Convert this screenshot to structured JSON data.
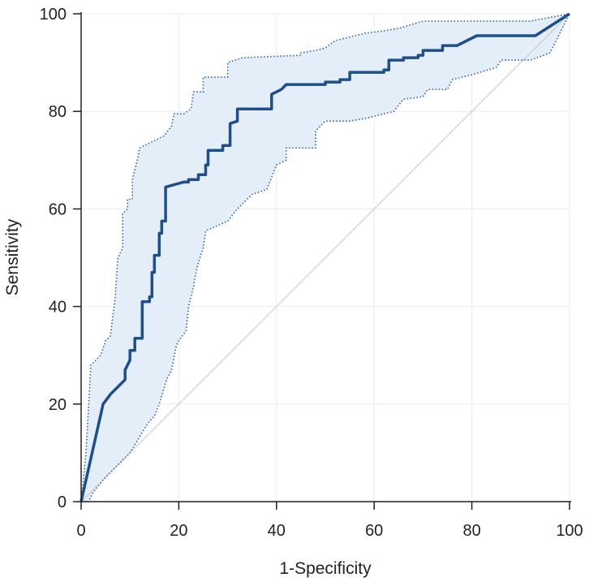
{
  "chart_data": {
    "type": "line",
    "title": "",
    "xlabel": "1-Specificity",
    "ylabel": "Sensitivity",
    "xlim": [
      0,
      100
    ],
    "ylim": [
      0,
      100
    ],
    "xticks": [
      "0",
      "20",
      "40",
      "60",
      "80",
      "100"
    ],
    "yticks": [
      "0",
      "20",
      "40",
      "60",
      "80",
      "100"
    ],
    "grid": true,
    "colors": {
      "curve": "#1f4e8c",
      "ci_line": "#2f5f9e",
      "ci_fill": "#e3eef9",
      "diagonal": "#c8c8c8",
      "grid": "#ececec",
      "axis": "#222222"
    },
    "series": [
      {
        "role": "roc-curve",
        "points": [
          [
            0,
            0
          ],
          [
            4.5,
            20
          ],
          [
            6,
            22
          ],
          [
            9,
            25
          ],
          [
            9,
            27
          ],
          [
            10,
            29
          ],
          [
            10,
            31
          ],
          [
            11,
            31
          ],
          [
            11,
            33.5
          ],
          [
            12.5,
            33.5
          ],
          [
            12.5,
            41
          ],
          [
            14,
            41
          ],
          [
            14,
            42
          ],
          [
            14.5,
            42
          ],
          [
            14.5,
            47
          ],
          [
            15,
            47
          ],
          [
            15,
            50.5
          ],
          [
            16,
            50.5
          ],
          [
            16,
            55
          ],
          [
            16.5,
            55
          ],
          [
            16.5,
            57.5
          ],
          [
            17.3,
            57.5
          ],
          [
            17.3,
            64.5
          ],
          [
            21,
            65.5
          ],
          [
            22,
            65.5
          ],
          [
            22,
            66
          ],
          [
            24,
            66
          ],
          [
            24,
            67
          ],
          [
            25.5,
            67
          ],
          [
            25.5,
            69
          ],
          [
            26,
            69
          ],
          [
            26,
            72
          ],
          [
            29,
            72
          ],
          [
            29,
            73
          ],
          [
            30.5,
            73
          ],
          [
            30.5,
            77.5
          ],
          [
            32,
            78
          ],
          [
            32,
            80.5
          ],
          [
            39,
            80.5
          ],
          [
            39,
            83.5
          ],
          [
            41,
            84.5
          ],
          [
            42,
            85.5
          ],
          [
            50,
            85.5
          ],
          [
            50,
            86
          ],
          [
            53,
            86
          ],
          [
            53,
            86.5
          ],
          [
            55,
            86.5
          ],
          [
            55,
            88
          ],
          [
            62,
            88
          ],
          [
            62,
            88.5
          ],
          [
            63,
            88.5
          ],
          [
            63,
            90.5
          ],
          [
            66,
            90.5
          ],
          [
            66,
            91
          ],
          [
            69,
            91
          ],
          [
            69,
            91.5
          ],
          [
            70,
            91.5
          ],
          [
            70,
            92.5
          ],
          [
            74,
            92.5
          ],
          [
            74,
            93.5
          ],
          [
            77,
            93.5
          ],
          [
            81,
            95.5
          ],
          [
            93,
            95.5
          ],
          [
            100,
            100
          ]
        ]
      },
      {
        "role": "ci-upper",
        "points": [
          [
            0,
            0
          ],
          [
            1,
            10
          ],
          [
            2,
            28
          ],
          [
            4,
            30
          ],
          [
            5,
            33
          ],
          [
            6,
            34
          ],
          [
            7,
            42
          ],
          [
            7.5,
            50
          ],
          [
            8.5,
            52
          ],
          [
            8.5,
            59
          ],
          [
            9.5,
            60
          ],
          [
            9.5,
            62
          ],
          [
            10.5,
            62
          ],
          [
            10.5,
            66
          ],
          [
            11.5,
            70
          ],
          [
            12,
            72.5
          ],
          [
            17,
            75
          ],
          [
            18.5,
            77
          ],
          [
            19,
            79.5
          ],
          [
            21,
            79.5
          ],
          [
            22.5,
            80.5
          ],
          [
            23,
            84
          ],
          [
            25,
            84
          ],
          [
            25,
            87
          ],
          [
            30,
            87
          ],
          [
            30,
            90
          ],
          [
            33,
            91
          ],
          [
            45,
            91.5
          ],
          [
            45,
            92
          ],
          [
            48,
            92.5
          ],
          [
            50,
            93
          ],
          [
            52,
            94.5
          ],
          [
            54,
            95
          ],
          [
            58,
            96
          ],
          [
            62,
            96.5
          ],
          [
            65,
            97
          ],
          [
            70,
            98.5
          ],
          [
            92,
            98.5
          ],
          [
            100,
            100
          ]
        ]
      },
      {
        "role": "ci-lower",
        "points": [
          [
            0,
            0
          ],
          [
            1.5,
            0
          ],
          [
            2.5,
            2
          ],
          [
            5,
            5
          ],
          [
            10,
            10
          ],
          [
            13,
            15
          ],
          [
            14,
            16.5
          ],
          [
            15,
            17.5
          ],
          [
            16,
            20
          ],
          [
            17.5,
            25
          ],
          [
            18.5,
            27
          ],
          [
            19.5,
            32
          ],
          [
            20,
            33
          ],
          [
            21.5,
            35
          ],
          [
            22,
            40
          ],
          [
            23,
            44
          ],
          [
            23.5,
            47
          ],
          [
            24,
            49
          ],
          [
            25,
            52
          ],
          [
            25.5,
            55.5
          ],
          [
            30,
            57.5
          ],
          [
            32,
            60
          ],
          [
            35,
            63
          ],
          [
            38,
            64
          ],
          [
            40,
            69
          ],
          [
            42,
            70
          ],
          [
            42,
            72.5
          ],
          [
            48,
            72.5
          ],
          [
            48,
            76
          ],
          [
            49.5,
            77.5
          ],
          [
            50,
            78
          ],
          [
            55,
            78
          ],
          [
            58,
            78.5
          ],
          [
            62,
            79.5
          ],
          [
            64,
            80
          ],
          [
            66,
            82.5
          ],
          [
            70,
            83
          ],
          [
            71,
            84.5
          ],
          [
            75,
            84.5
          ],
          [
            76,
            86.5
          ],
          [
            80,
            87.5
          ],
          [
            85,
            89
          ],
          [
            86,
            90.5
          ],
          [
            92,
            90.5
          ],
          [
            96,
            92
          ],
          [
            100,
            100
          ]
        ]
      },
      {
        "role": "reference-diagonal",
        "points": [
          [
            0,
            0
          ],
          [
            100,
            100
          ]
        ]
      }
    ]
  }
}
